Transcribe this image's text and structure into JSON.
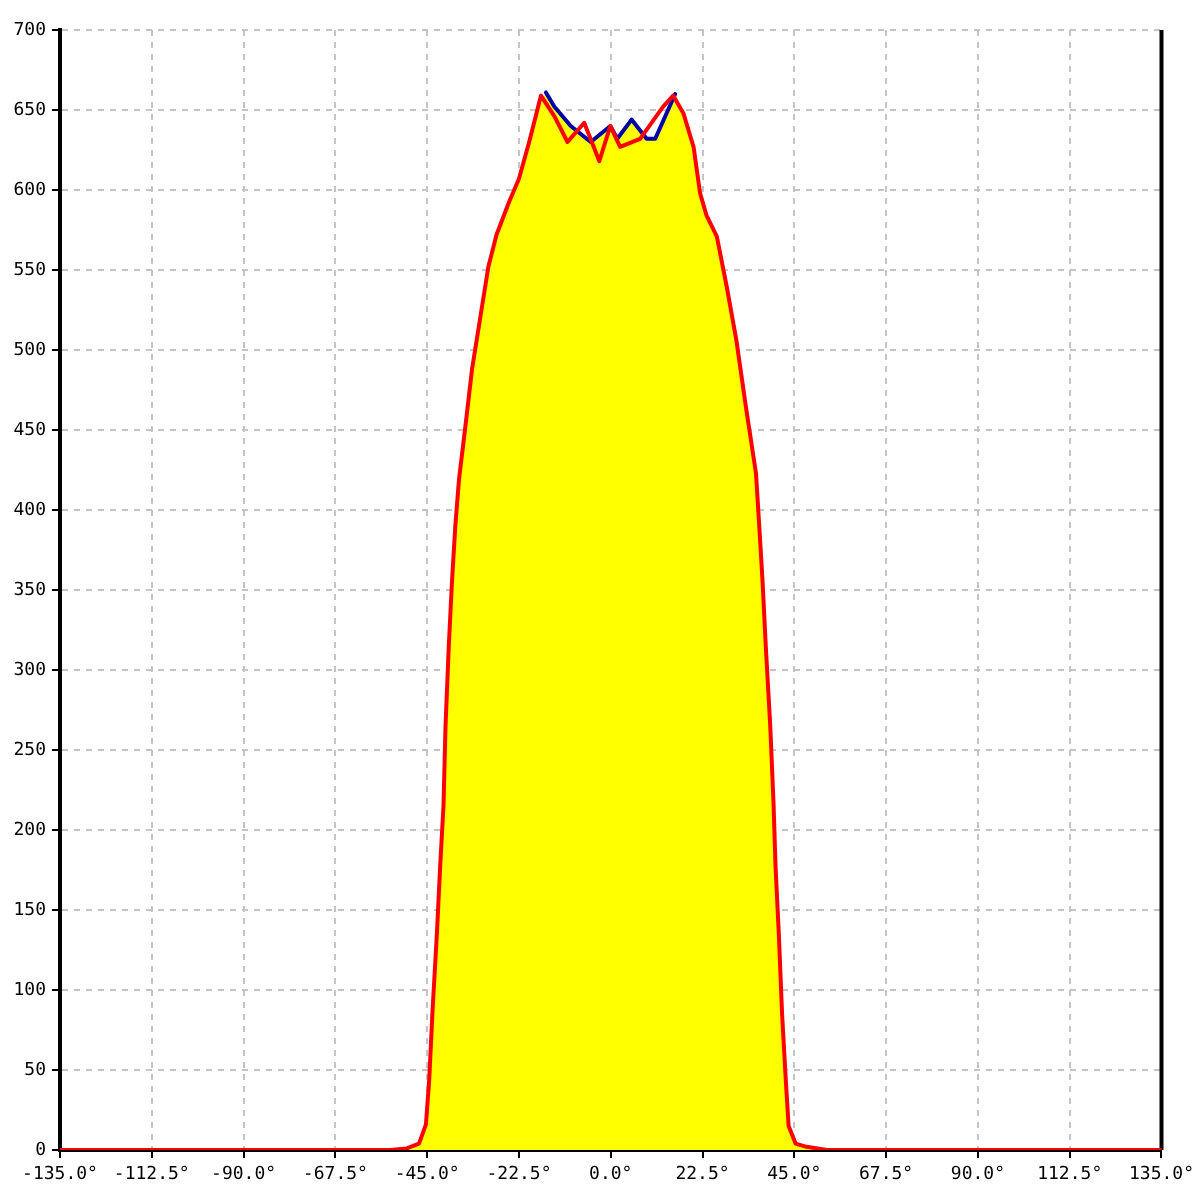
{
  "chart_data": {
    "type": "line",
    "xlim": [
      -135,
      135
    ],
    "ylim": [
      0,
      700
    ],
    "xticks": [
      {
        "value": -135,
        "label": "-135.0°"
      },
      {
        "value": -112.5,
        "label": "-112.5°"
      },
      {
        "value": -90,
        "label": "-90.0°"
      },
      {
        "value": -67.5,
        "label": "-67.5°"
      },
      {
        "value": -45,
        "label": "-45.0°"
      },
      {
        "value": -22.5,
        "label": "-22.5°"
      },
      {
        "value": 0,
        "label": "0.0°"
      },
      {
        "value": 22.5,
        "label": "22.5°"
      },
      {
        "value": 45,
        "label": "45.0°"
      },
      {
        "value": 67.5,
        "label": "67.5°"
      },
      {
        "value": 90,
        "label": "90.0°"
      },
      {
        "value": 112.5,
        "label": "112.5°"
      },
      {
        "value": 135,
        "label": "135.0°"
      }
    ],
    "yticks": [
      0,
      50,
      100,
      150,
      200,
      250,
      300,
      350,
      400,
      450,
      500,
      550,
      600,
      650,
      700
    ],
    "grid": true,
    "marker": "none",
    "line_style": "solid",
    "series": [
      {
        "color": "#ff0000",
        "x": [
          -135,
          -54,
          -50,
          -47,
          -45.3,
          -44.5,
          -43.7,
          -42.6,
          -41.8,
          -41,
          -40.5,
          -39.7,
          -38.9,
          -38.1,
          -37.2,
          -35.6,
          -34,
          -32,
          -30,
          -28,
          -25,
          -22.5,
          -20,
          -18.5,
          -17.1,
          -13.8,
          -10.6,
          -6.5,
          -2.8,
          -0.1,
          2.3,
          7.2,
          12.8,
          15.3,
          17.8,
          20.3,
          21.9,
          23.5,
          26,
          28.4,
          30.8,
          33.1,
          35.6,
          36.4,
          37.2,
          38,
          39.1,
          39.9,
          40.4,
          41.2,
          42,
          42.9,
          43.6,
          45.3,
          48,
          53,
          135
        ],
        "values": [
          0,
          0,
          1,
          4,
          16,
          44,
          86,
          136,
          178,
          215,
          265,
          315,
          356,
          390,
          419,
          453,
          488,
          520,
          552,
          572,
          592,
          607,
          630,
          645,
          659,
          646,
          630,
          642,
          618,
          640,
          627,
          632,
          652,
          659,
          648,
          627,
          598,
          584,
          571,
          540,
          506,
          465,
          423,
          390,
          356,
          315,
          265,
          217,
          177,
          135,
          85,
          44,
          15,
          4,
          2,
          0,
          0
        ]
      },
      {
        "color": "#0000aa",
        "x": [
          -15.9,
          -13.8,
          -9.8,
          -4.9,
          -0.1,
          1.6,
          5.1,
          8.8,
          10.9,
          15.8
        ],
        "values": [
          661,
          652,
          640,
          630,
          640,
          632,
          644,
          632,
          632,
          660
        ]
      },
      {
        "type": "area",
        "color": "#ffff00",
        "x": [
          -135,
          -54,
          -50,
          -47,
          -45.3,
          -44.5,
          -43.7,
          -42.6,
          -41.8,
          -41,
          -40.5,
          -39.7,
          -38.9,
          -38.1,
          -37.2,
          -35.6,
          -34,
          -32,
          -30,
          -28,
          -25,
          -22.5,
          -20,
          -17.5,
          -15.9,
          -13.8,
          -9.8,
          -4.9,
          -0.1,
          1.6,
          5.1,
          8.8,
          10.9,
          15.8,
          17.8,
          20.3,
          21.9,
          23.5,
          26,
          28.4,
          30.8,
          33.1,
          35.6,
          36.4,
          37.2,
          38,
          39.1,
          39.9,
          40.4,
          41.2,
          42,
          42.9,
          43.6,
          45.3,
          48,
          53,
          135
        ],
        "values": [
          0,
          0,
          1,
          4,
          16,
          44,
          86,
          136,
          178,
          215,
          265,
          315,
          356,
          390,
          419,
          453,
          488,
          520,
          552,
          572,
          592,
          607,
          630,
          652,
          661,
          652,
          640,
          630,
          640,
          632,
          644,
          632,
          632,
          660,
          648,
          627,
          598,
          584,
          571,
          540,
          506,
          465,
          423,
          390,
          356,
          315,
          265,
          217,
          177,
          135,
          85,
          44,
          15,
          4,
          2,
          0,
          0
        ]
      }
    ]
  }
}
